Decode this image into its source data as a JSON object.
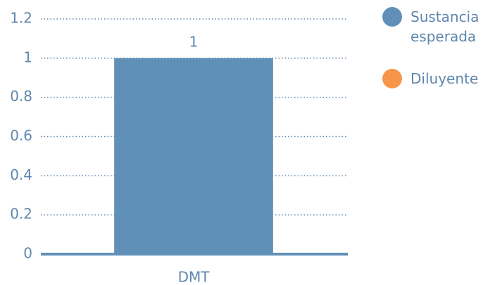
{
  "chart_data": {
    "type": "bar",
    "categories": [
      "DMT"
    ],
    "series": [
      {
        "name": "Sustancia esperada",
        "color": "#6090b8",
        "values": [
          1
        ],
        "value_labels": [
          "1"
        ]
      },
      {
        "name": "Diluyente",
        "color": "#f7964a",
        "values": [
          null
        ]
      }
    ],
    "ylim": [
      0,
      1.2
    ],
    "yticks": [
      0,
      0.2,
      0.4,
      0.6,
      0.8,
      1,
      1.2
    ],
    "grid": true,
    "legend": "right"
  }
}
